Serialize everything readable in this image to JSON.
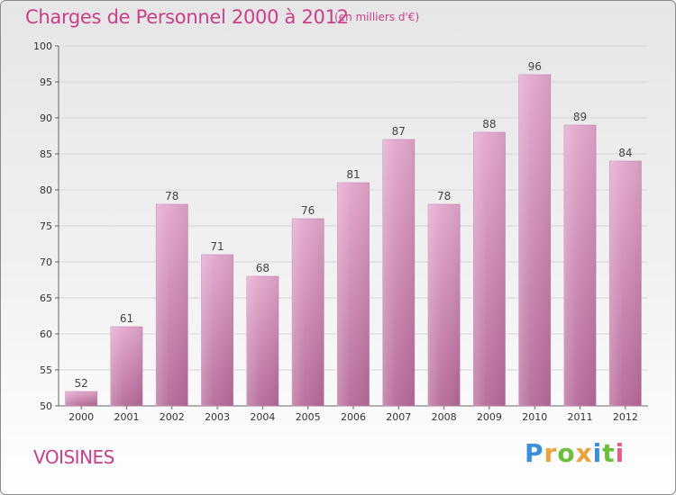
{
  "header": {
    "title": "Charges de Personnel 2000 à 2012",
    "subtitle": "(en milliers d'€)"
  },
  "footer": {
    "place": "VOISINES",
    "logo_letters": [
      {
        "char": "P",
        "color": "#3a8fd8"
      },
      {
        "char": "r",
        "color": "#e8a43a"
      },
      {
        "char": "o",
        "color": "#6cbf3a"
      },
      {
        "char": "x",
        "color": "#e8a43a"
      },
      {
        "char": "i",
        "color": "#3a8fd8"
      },
      {
        "char": "t",
        "color": "#6cbf3a"
      },
      {
        "char": "i",
        "color": "#e85a8a"
      }
    ]
  },
  "chart_data": {
    "type": "bar",
    "title": "Charges de Personnel 2000 à 2012",
    "subtitle": "(en milliers d'€)",
    "categories": [
      "2000",
      "2001",
      "2002",
      "2003",
      "2004",
      "2005",
      "2006",
      "2007",
      "2008",
      "2009",
      "2010",
      "2011",
      "2012"
    ],
    "values": [
      52,
      61,
      78,
      71,
      68,
      76,
      81,
      87,
      78,
      88,
      96,
      89,
      84
    ],
    "ylim": [
      50,
      100
    ],
    "yticks": [
      50,
      55,
      60,
      65,
      70,
      75,
      80,
      85,
      90,
      95,
      100
    ],
    "grid": true,
    "bar_color_top": "#e3a6cc",
    "bar_color_bottom": "#b56a98"
  }
}
